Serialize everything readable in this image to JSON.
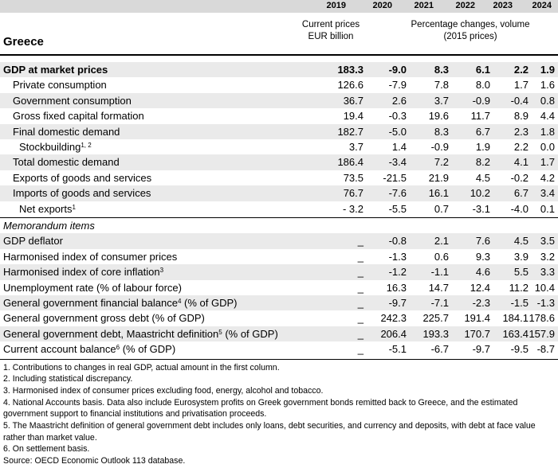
{
  "country": "Greece",
  "years": [
    "2019",
    "2020",
    "2021",
    "2022",
    "2023",
    "2024"
  ],
  "sub_current": "Current prices\nEUR billion",
  "sub_pct": "Percentage changes, volume\n(2015 prices)",
  "rows": [
    {
      "label": "GDP at market prices",
      "values": [
        "183.3",
        "-9.0",
        "8.3",
        "6.1",
        "2.2",
        "1.9"
      ]
    },
    {
      "label": "Private consumption",
      "values": [
        "126.6",
        "-7.9",
        "7.8",
        "8.0",
        "1.7",
        "1.6"
      ]
    },
    {
      "label": "Government consumption",
      "values": [
        "36.7",
        "2.6",
        "3.7",
        "-0.9",
        "-0.4",
        "0.8"
      ]
    },
    {
      "label": "Gross fixed capital formation",
      "values": [
        "19.4",
        "-0.3",
        "19.6",
        "11.7",
        "8.9",
        "4.4"
      ]
    },
    {
      "label": "Final domestic demand",
      "values": [
        "182.7",
        "-5.0",
        "8.3",
        "6.7",
        "2.3",
        "1.8"
      ]
    },
    {
      "label": "Stockbuilding",
      "sup": "1, 2",
      "values": [
        "3.7",
        "1.4",
        "-0.9",
        "1.9",
        "2.2",
        "0.0"
      ]
    },
    {
      "label": "Total domestic demand",
      "values": [
        "186.4",
        "-3.4",
        "7.2",
        "8.2",
        "4.1",
        "1.7"
      ]
    },
    {
      "label": "Exports of goods and services",
      "values": [
        "73.5",
        "-21.5",
        "21.9",
        "4.5",
        "-0.2",
        "4.2"
      ]
    },
    {
      "label": "Imports of goods and services",
      "values": [
        "76.7",
        "-7.6",
        "16.1",
        "10.2",
        "6.7",
        "3.4"
      ]
    },
    {
      "label": "Net exports",
      "sup": "1",
      "values": [
        "- 3.2",
        "-5.5",
        "0.7",
        "-3.1",
        "-4.0",
        "0.1"
      ]
    }
  ],
  "memo_title": "Memorandum items",
  "memo_rows": [
    {
      "label": "GDP deflator",
      "values": [
        "_",
        "-0.8",
        "2.1",
        "7.6",
        "4.5",
        "3.5"
      ]
    },
    {
      "label": "Harmonised index of consumer prices",
      "values": [
        "_",
        "-1.3",
        "0.6",
        "9.3",
        "3.9",
        "3.2"
      ]
    },
    {
      "label": "Harmonised index of core inflation",
      "sup": "3",
      "values": [
        "_",
        "-1.2",
        "-1.1",
        "4.6",
        "5.5",
        "3.3"
      ]
    },
    {
      "label": "Unemployment rate (% of labour force)",
      "values": [
        "_",
        "16.3",
        "14.7",
        "12.4",
        "11.2",
        "10.4"
      ]
    },
    {
      "label": "General government financial balance",
      "sup": "4",
      "suffix": " (% of GDP)",
      "values": [
        "_",
        "-9.7",
        "-7.1",
        "-2.3",
        "-1.5",
        "-1.3"
      ]
    },
    {
      "label": "General government gross debt (% of GDP)",
      "values": [
        "_",
        "242.3",
        "225.7",
        "191.4",
        "184.1",
        "178.6"
      ]
    },
    {
      "label": "General government debt, Maastricht definition",
      "sup": "5",
      "suffix": " (% of GDP)",
      "values": [
        "_",
        "206.4",
        "193.3",
        "170.7",
        "163.4",
        "157.9"
      ]
    },
    {
      "label": "Current account balance",
      "sup": "6",
      "suffix": " (% of GDP)",
      "values": [
        "_",
        "-5.1",
        "-6.7",
        "-9.7",
        "-9.5",
        "-8.7"
      ]
    }
  ],
  "footnotes": [
    "1. Contributions to changes in real GDP, actual amount in the first column.",
    "2. Including statistical discrepancy.",
    "3. Harmonised index of consumer prices excluding food, energy, alcohol and tobacco.",
    "4. National Accounts basis. Data also include Eurosystem profits on Greek government bonds remitted back to Greece, and the estimated government support to financial institutions and privatisation proceeds.",
    "5. The Maastricht definition of general government debt includes only loans, debt securities, and currency and deposits, with debt at face value rather than market value.",
    "6. On settlement basis.",
    "Source: OECD Economic Outlook 113 database."
  ]
}
